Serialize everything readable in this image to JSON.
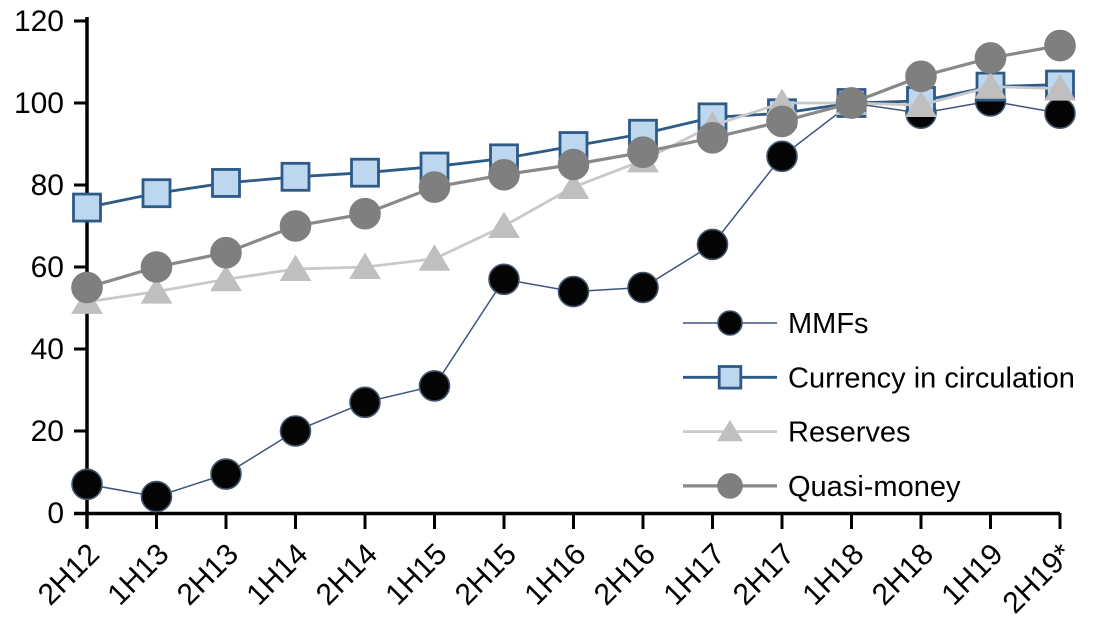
{
  "chart_data": {
    "type": "line",
    "title": "",
    "xlabel": "",
    "ylabel": "",
    "ylim": [
      0,
      120
    ],
    "yticks": [
      0,
      20,
      40,
      60,
      80,
      100,
      120
    ],
    "grid": false,
    "legend_position": "inside-right",
    "axis_color": "#000000",
    "background_color": "#ffffff",
    "categories": [
      "2H12",
      "1H13",
      "2H13",
      "1H14",
      "2H14",
      "1H15",
      "2H15",
      "1H16",
      "2H16",
      "1H17",
      "2H17",
      "1H18",
      "2H18",
      "1H19",
      "2H19*"
    ],
    "series": [
      {
        "name": "MMFs",
        "marker": "circle",
        "marker_fill": "#050505",
        "marker_stroke": "#44546A",
        "line_color": "#3E5480",
        "line_width": 1.5,
        "values": [
          7,
          4,
          9.5,
          20,
          27,
          31,
          57,
          54,
          55,
          65.5,
          87,
          100,
          97.5,
          100.5,
          97.5
        ]
      },
      {
        "name": "Currency in circulation",
        "marker": "square",
        "marker_fill": "#BDD7EE",
        "marker_stroke": "#2E5A88",
        "line_color": "#2E5A88",
        "line_width": 2.8,
        "values": [
          74.5,
          78,
          80.5,
          82,
          83,
          84.5,
          86.5,
          89.5,
          92.5,
          96.5,
          97.5,
          100,
          100.5,
          104,
          104.5
        ]
      },
      {
        "name": "Reserves",
        "marker": "triangle",
        "marker_fill": "#BFBFBF",
        "marker_stroke": "#BFBFBF",
        "line_color": "#C9C9C9",
        "line_width": 2.8,
        "values": [
          51.5,
          54,
          57,
          59.5,
          60,
          62,
          70,
          79.5,
          86,
          94.5,
          100,
          100,
          99.5,
          104,
          103.5
        ]
      },
      {
        "name": "Quasi-money",
        "marker": "circle",
        "marker_fill": "#7F7F7F",
        "marker_stroke": "#7F7F7F",
        "line_color": "#898989",
        "line_width": 3.2,
        "values": [
          55,
          60,
          63.5,
          70,
          73,
          79.5,
          82.5,
          85,
          88,
          91.5,
          95.5,
          100,
          106.5,
          111,
          114
        ]
      }
    ]
  }
}
